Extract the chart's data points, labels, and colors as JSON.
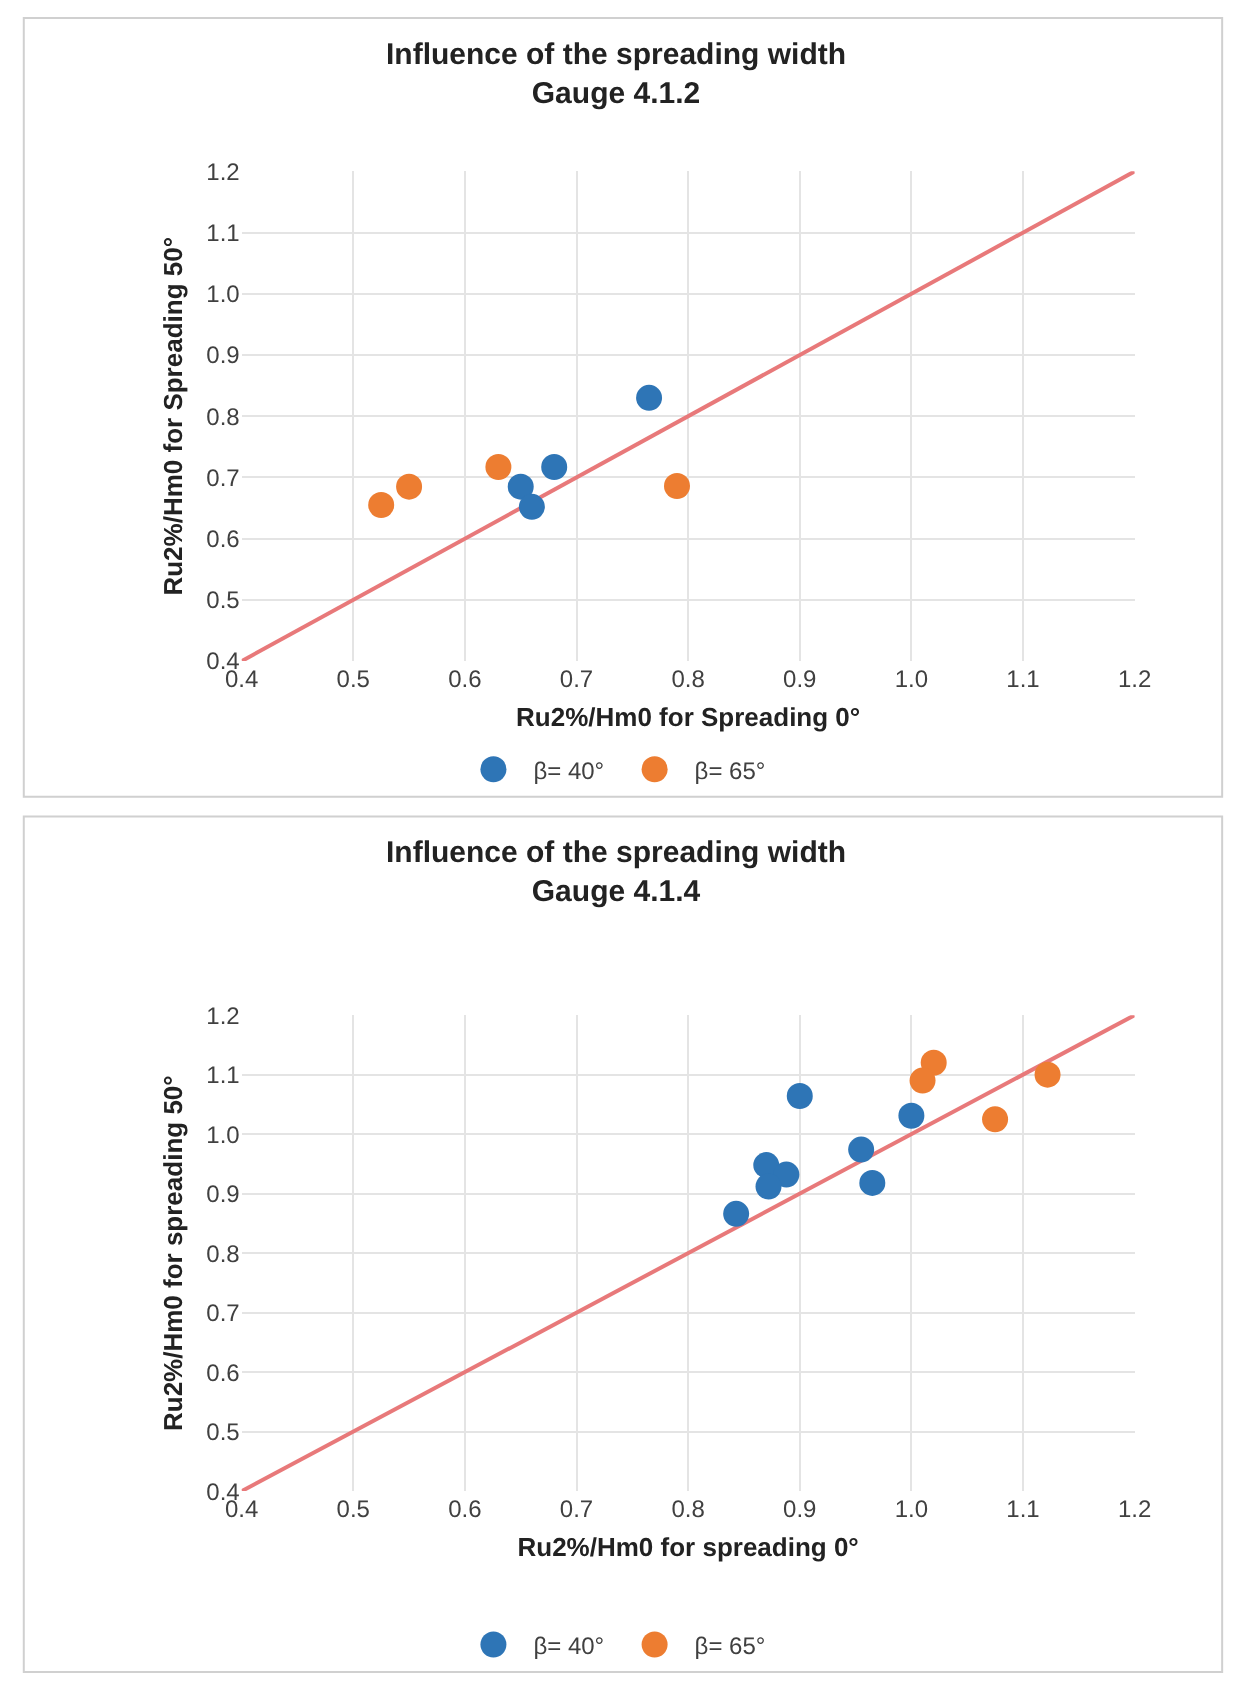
{
  "chart_data": [
    {
      "type": "scatter",
      "title": "Influence of the spreading width",
      "subtitle": "Gauge 4.1.2",
      "xlabel": "Ru2%/Hm0 for Spreading 0°",
      "ylabel": "Ru2%/Hm0 for Spreading 50°",
      "xlim": [
        0.4,
        1.2
      ],
      "ylim": [
        0.4,
        1.2
      ],
      "xticks": [
        {
          "value": 0.4,
          "label": "0.4"
        },
        {
          "value": 0.5,
          "label": "0.5"
        },
        {
          "value": 0.6,
          "label": "0.6"
        },
        {
          "value": 0.7,
          "label": "0.7"
        },
        {
          "value": 0.8,
          "label": "0.8"
        },
        {
          "value": 0.9,
          "label": "0.9"
        },
        {
          "value": 1.0,
          "label": "1.0"
        },
        {
          "value": 1.1,
          "label": "1.1"
        },
        {
          "value": 1.2,
          "label": "1.2"
        }
      ],
      "yticks": [
        {
          "value": 0.4,
          "label": "0.4"
        },
        {
          "value": 0.5,
          "label": "0.5"
        },
        {
          "value": 0.6,
          "label": "0.6"
        },
        {
          "value": 0.7,
          "label": "0.7"
        },
        {
          "value": 0.8,
          "label": "0.8"
        },
        {
          "value": 0.9,
          "label": "0.9"
        },
        {
          "value": 1.0,
          "label": "1.0"
        },
        {
          "value": 1.1,
          "label": "1.1"
        },
        {
          "value": 1.2,
          "label": "1.2"
        }
      ],
      "grid": true,
      "legend": "bottom",
      "series": [
        {
          "type": "line",
          "marker": "none",
          "color": "#e8797a",
          "x": [
            0.4,
            1.2
          ],
          "values": [
            0.4,
            1.2
          ]
        },
        {
          "name": "β= 40°",
          "marker": "circle",
          "color": "#2e75b6",
          "x": [
            0.65,
            0.66,
            0.68,
            0.765
          ],
          "values": [
            0.685,
            0.652,
            0.717,
            0.83
          ]
        },
        {
          "name": "β= 65°",
          "marker": "circle",
          "color": "#ed7d31",
          "x": [
            0.525,
            0.55,
            0.63,
            0.79
          ],
          "values": [
            0.655,
            0.685,
            0.717,
            0.686
          ]
        }
      ]
    },
    {
      "type": "scatter",
      "title": "Influence of the spreading width",
      "subtitle": "Gauge 4.1.4",
      "xlabel": "Ru2%/Hm0 for spreading 0°",
      "ylabel": "Ru2%/Hm0 for spreading 50°",
      "xlim": [
        0.4,
        1.2
      ],
      "ylim": [
        0.4,
        1.2
      ],
      "xticks": [
        {
          "value": 0.4,
          "label": "0.4"
        },
        {
          "value": 0.5,
          "label": "0.5"
        },
        {
          "value": 0.6,
          "label": "0.6"
        },
        {
          "value": 0.7,
          "label": "0.7"
        },
        {
          "value": 0.8,
          "label": "0.8"
        },
        {
          "value": 0.9,
          "label": "0.9"
        },
        {
          "value": 1.0,
          "label": "1.0"
        },
        {
          "value": 1.1,
          "label": "1.1"
        },
        {
          "value": 1.2,
          "label": "1.2"
        }
      ],
      "yticks": [
        {
          "value": 0.4,
          "label": "0.4"
        },
        {
          "value": 0.5,
          "label": "0.5"
        },
        {
          "value": 0.6,
          "label": "0.6"
        },
        {
          "value": 0.7,
          "label": "0.7"
        },
        {
          "value": 0.8,
          "label": "0.8"
        },
        {
          "value": 0.9,
          "label": "0.9"
        },
        {
          "value": 1.0,
          "label": "1.0"
        },
        {
          "value": 1.1,
          "label": "1.1"
        },
        {
          "value": 1.2,
          "label": "1.2"
        }
      ],
      "grid": true,
      "legend": "bottom",
      "series": [
        {
          "type": "line",
          "marker": "none",
          "color": "#e8797a",
          "x": [
            0.4,
            1.2
          ],
          "values": [
            0.4,
            1.2
          ]
        },
        {
          "name": "β= 40°",
          "marker": "circle",
          "color": "#2e75b6",
          "x": [
            0.9,
            1.0,
            0.955,
            0.965,
            0.87,
            0.888,
            0.872,
            0.843
          ],
          "values": [
            1.064,
            1.031,
            0.974,
            0.918,
            0.948,
            0.932,
            0.912,
            0.866
          ]
        },
        {
          "name": "β= 65°",
          "marker": "circle",
          "color": "#ed7d31",
          "x": [
            1.02,
            1.01,
            1.122,
            1.075
          ],
          "values": [
            1.12,
            1.09,
            1.1,
            1.025
          ]
        }
      ]
    }
  ]
}
